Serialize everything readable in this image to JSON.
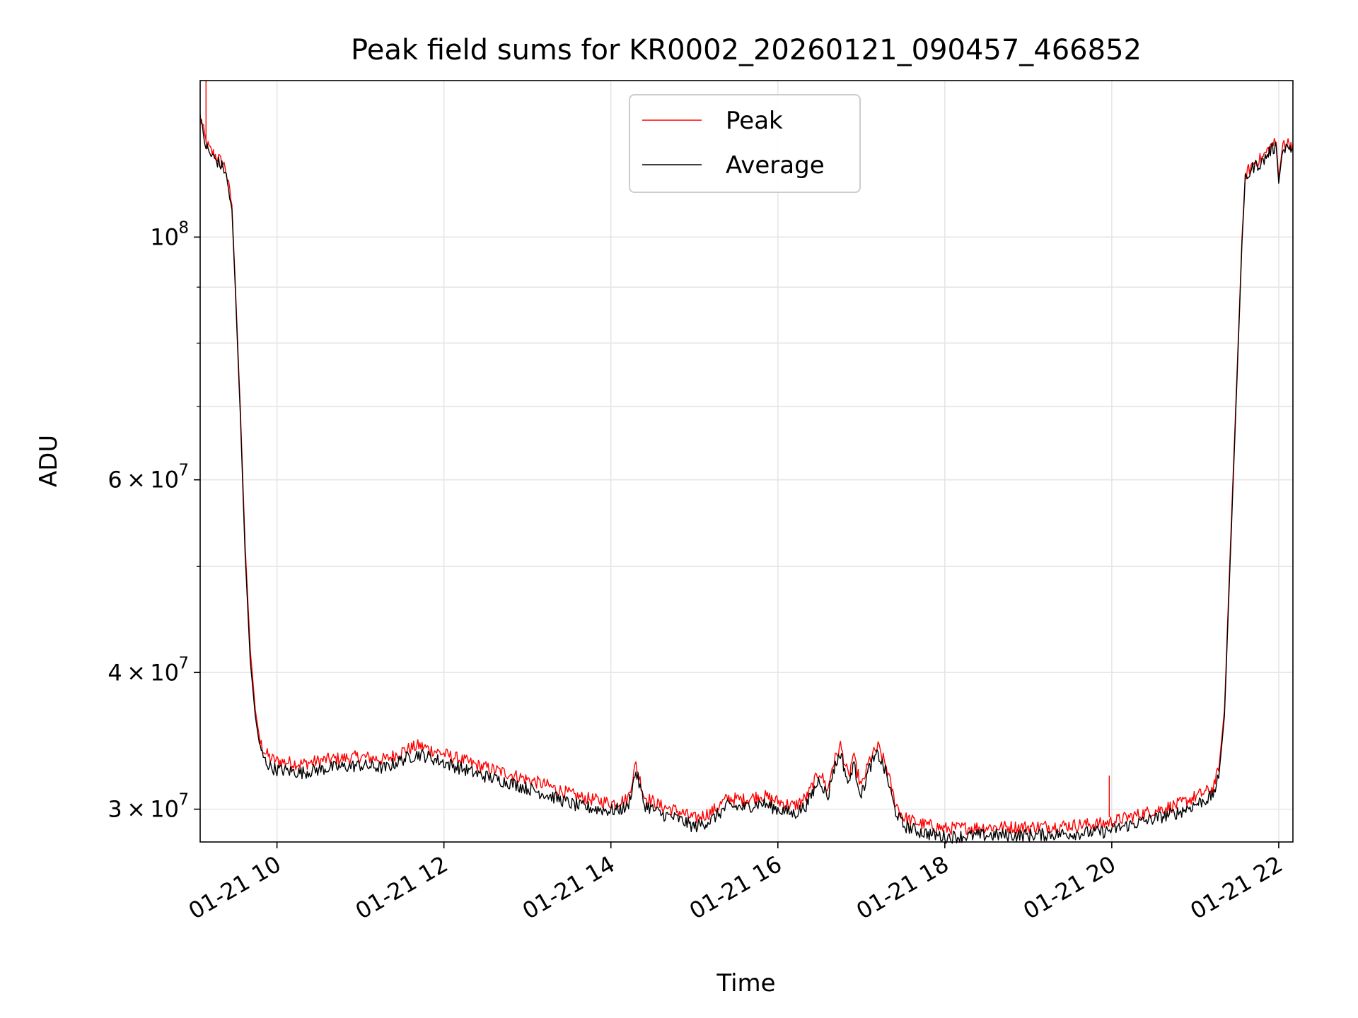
{
  "chart_data": {
    "type": "line",
    "title": "Peak field sums for KR0002_20260121_090457_466852",
    "xlabel": "Time",
    "ylabel": "ADU",
    "yscale": "log",
    "xlim": [
      9.08,
      22.17
    ],
    "ylim": [
      28000000,
      139000000
    ],
    "grid": true,
    "legend_position": "top-center",
    "x_ticks": [
      {
        "value": 10,
        "label": "01-21 10"
      },
      {
        "value": 12,
        "label": "01-21 12"
      },
      {
        "value": 14,
        "label": "01-21 14"
      },
      {
        "value": 16,
        "label": "01-21 16"
      },
      {
        "value": 18,
        "label": "01-21 18"
      },
      {
        "value": 20,
        "label": "01-21 20"
      },
      {
        "value": 22,
        "label": "01-21 22"
      }
    ],
    "y_ticks": [
      {
        "value": 30000000,
        "base": "3",
        "exp": "7"
      },
      {
        "value": 40000000,
        "base": "4",
        "exp": "7"
      },
      {
        "value": 60000000,
        "base": "6",
        "exp": "7"
      },
      {
        "value": 100000000,
        "base": "",
        "exp": "8"
      }
    ],
    "y_minor_ticks": [
      50000000,
      70000000,
      80000000,
      90000000
    ],
    "times_symbol": "×",
    "ten": "10",
    "series": [
      {
        "name": "Peak",
        "color": "#ff0000",
        "x": [
          9.08,
          9.12,
          9.15,
          9.2,
          9.3,
          9.38,
          9.46,
          9.5,
          9.56,
          9.62,
          9.68,
          9.74,
          9.8,
          9.86,
          9.92,
          10.0,
          10.3,
          10.6,
          11.0,
          11.3,
          11.5,
          11.7,
          12.0,
          12.4,
          12.8,
          13.2,
          13.6,
          14.0,
          14.2,
          14.3,
          14.4,
          14.6,
          14.8,
          15.0,
          15.2,
          15.4,
          15.6,
          15.8,
          16.0,
          16.2,
          16.35,
          16.5,
          16.6,
          16.65,
          16.75,
          16.85,
          16.9,
          17.0,
          17.1,
          17.2,
          17.3,
          17.4,
          17.5,
          17.7,
          18.0,
          18.5,
          19.0,
          19.5,
          19.9,
          20.2,
          20.5,
          20.8,
          21.0,
          21.2,
          21.28,
          21.35,
          21.42,
          21.5,
          21.56,
          21.6,
          21.7,
          21.8,
          21.9,
          21.97,
          22.0,
          22.05,
          22.1,
          22.17
        ],
        "y": [
          129000000,
          125000000,
          122000000,
          120000000,
          118000000,
          116000000,
          107000000,
          91000000,
          70000000,
          52000000,
          42000000,
          37000000,
          34500000,
          33800000,
          33400000,
          33200000,
          33000000,
          33300000,
          33500000,
          33300000,
          33900000,
          34300000,
          33700000,
          32900000,
          32300000,
          31600000,
          30800000,
          30400000,
          30600000,
          33000000,
          30800000,
          30200000,
          29900000,
          29400000,
          29800000,
          30700000,
          30600000,
          30900000,
          30500000,
          30200000,
          30800000,
          32500000,
          31200000,
          32800000,
          34300000,
          32000000,
          33600000,
          31400000,
          33300000,
          34200000,
          32800000,
          30500000,
          29500000,
          29100000,
          28800000,
          28900000,
          28900000,
          29000000,
          29100000,
          29500000,
          29900000,
          30300000,
          30800000,
          31300000,
          32500000,
          37000000,
          52000000,
          75000000,
          100000000,
          114000000,
          117000000,
          118000000,
          121000000,
          122000000,
          113000000,
          122000000,
          122000000,
          121500000
        ]
      },
      {
        "name": "Average",
        "color": "#000000",
        "x": [
          9.08,
          9.12,
          9.15,
          9.2,
          9.3,
          9.38,
          9.46,
          9.5,
          9.56,
          9.62,
          9.68,
          9.74,
          9.8,
          9.86,
          9.92,
          10.0,
          10.3,
          10.6,
          11.0,
          11.3,
          11.5,
          11.7,
          12.0,
          12.4,
          12.8,
          13.2,
          13.6,
          14.0,
          14.2,
          14.3,
          14.4,
          14.6,
          14.8,
          15.0,
          15.2,
          15.4,
          15.6,
          15.8,
          16.0,
          16.2,
          16.35,
          16.5,
          16.6,
          16.65,
          16.75,
          16.85,
          16.9,
          17.0,
          17.1,
          17.2,
          17.3,
          17.4,
          17.5,
          17.7,
          18.0,
          18.5,
          19.0,
          19.5,
          19.9,
          20.2,
          20.5,
          20.8,
          21.0,
          21.2,
          21.28,
          21.35,
          21.42,
          21.5,
          21.56,
          21.6,
          21.7,
          21.8,
          21.9,
          21.97,
          22.0,
          22.05,
          22.1,
          22.17
        ],
        "y": [
          128000000,
          124000000,
          121000000,
          119000000,
          117000000,
          115000000,
          106000000,
          90000000,
          69000000,
          51000000,
          41000000,
          36500000,
          34000000,
          33200000,
          32800000,
          32600000,
          32400000,
          32700000,
          32900000,
          32700000,
          33300000,
          33700000,
          33100000,
          32300000,
          31700000,
          31000000,
          30200000,
          29900000,
          30100000,
          32500000,
          30300000,
          29700000,
          29400000,
          28900000,
          29300000,
          30200000,
          30100000,
          30400000,
          30000000,
          29700000,
          30300000,
          32000000,
          30700000,
          32300000,
          33800000,
          31500000,
          33100000,
          30900000,
          32800000,
          33700000,
          32300000,
          30000000,
          29000000,
          28600000,
          28300000,
          28400000,
          28400000,
          28500000,
          28600000,
          29000000,
          29400000,
          29800000,
          30300000,
          30800000,
          32000000,
          36500000,
          51000000,
          74000000,
          99000000,
          113000000,
          116000000,
          117000000,
          120000000,
          121000000,
          112000000,
          121000000,
          121000000,
          120500000
        ]
      }
    ]
  }
}
